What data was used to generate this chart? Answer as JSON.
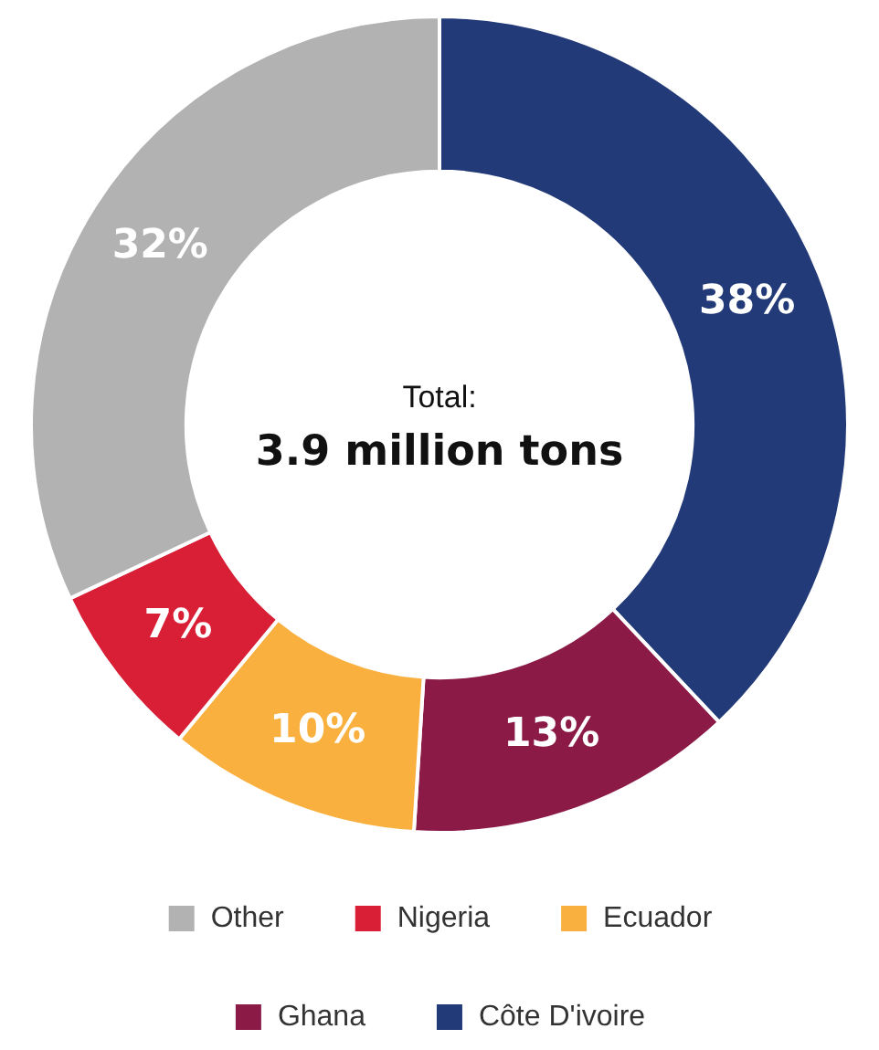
{
  "chart_data": {
    "type": "donut",
    "categories": [
      "Côte D'ivoire",
      "Ghana",
      "Ecuador",
      "Nigeria",
      "Other"
    ],
    "values": [
      38,
      13,
      10,
      7,
      32
    ],
    "colors": [
      "#233a78",
      "#8b1a47",
      "#f9b03f",
      "#d91f35",
      "#b2b2b2"
    ],
    "value_labels": [
      "38%",
      "13%",
      "10%",
      "7%",
      "32%"
    ],
    "legend": "bottom",
    "annotations": [
      "Total:",
      "3.9 million tons"
    ]
  }
}
